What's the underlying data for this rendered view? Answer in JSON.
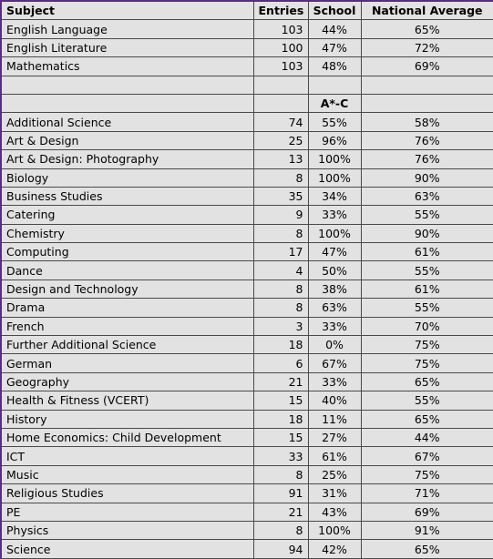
{
  "headers": {
    "subject": "Subject",
    "entries": "Entries",
    "school": "School",
    "national": "National Average"
  },
  "core_rows": [
    {
      "subject": "English Language",
      "entries": "103",
      "school": "44%",
      "national": "65%"
    },
    {
      "subject": "English Literature",
      "entries": "100",
      "school": "47%",
      "national": "72%"
    },
    {
      "subject": "Mathematics",
      "entries": "103",
      "school": "48%",
      "national": "69%"
    }
  ],
  "grade_label": "A*-C",
  "rows": [
    {
      "subject": "Additional Science",
      "entries": "74",
      "school": "55%",
      "national": "58%"
    },
    {
      "subject": "Art & Design",
      "entries": "25",
      "school": "96%",
      "national": "76%"
    },
    {
      "subject": "Art & Design: Photography",
      "entries": "13",
      "school": "100%",
      "national": "76%"
    },
    {
      "subject": "Biology",
      "entries": "8",
      "school": "100%",
      "national": "90%"
    },
    {
      "subject": "Business Studies",
      "entries": "35",
      "school": "34%",
      "national": "63%"
    },
    {
      "subject": "Catering",
      "entries": "9",
      "school": "33%",
      "national": "55%"
    },
    {
      "subject": "Chemistry",
      "entries": "8",
      "school": "100%",
      "national": "90%"
    },
    {
      "subject": "Computing",
      "entries": "17",
      "school": "47%",
      "national": "61%"
    },
    {
      "subject": "Dance",
      "entries": "4",
      "school": "50%",
      "national": "55%"
    },
    {
      "subject": "Design and Technology",
      "entries": "8",
      "school": "38%",
      "national": "61%"
    },
    {
      "subject": "Drama",
      "entries": "8",
      "school": "63%",
      "national": "55%"
    },
    {
      "subject": "French",
      "entries": "3",
      "school": "33%",
      "national": "70%"
    },
    {
      "subject": "Further Additional Science",
      "entries": "18",
      "school": "0%",
      "national": "75%"
    },
    {
      "subject": "German",
      "entries": "6",
      "school": "67%",
      "national": "75%"
    },
    {
      "subject": "Geography",
      "entries": "21",
      "school": "33%",
      "national": "65%"
    },
    {
      "subject": "Health & Fitness (VCERT)",
      "entries": "15",
      "school": "40%",
      "national": "55%"
    },
    {
      "subject": "History",
      "entries": "18",
      "school": "11%",
      "national": "65%"
    },
    {
      "subject": "Home Economics: Child Development",
      "entries": "15",
      "school": "27%",
      "national": "44%"
    },
    {
      "subject": "ICT",
      "entries": "33",
      "school": "61%",
      "national": "67%"
    },
    {
      "subject": "Music",
      "entries": "8",
      "school": "25%",
      "national": "75%"
    },
    {
      "subject": "Religious Studies",
      "entries": "91",
      "school": "31%",
      "national": "71%"
    },
    {
      "subject": "PE",
      "entries": "21",
      "school": "43%",
      "national": "69%"
    },
    {
      "subject": "Physics",
      "entries": "8",
      "school": "100%",
      "national": "91%"
    },
    {
      "subject": "Science",
      "entries": "94",
      "school": "42%",
      "national": "65%"
    }
  ],
  "colors": {
    "cell_background": "#e2e2e2",
    "outer_border": "#5b2c83",
    "grid_border": "#4a4a4a"
  }
}
